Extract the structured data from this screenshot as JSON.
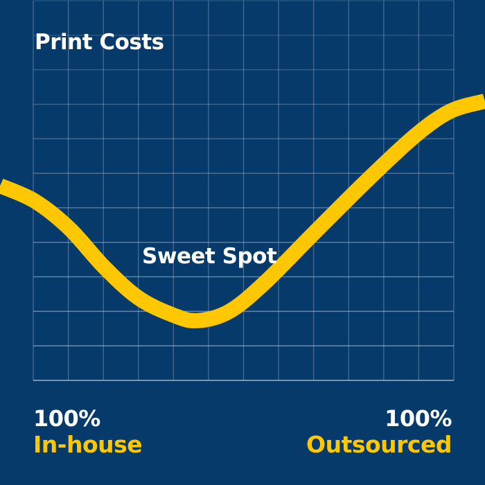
{
  "chart_data": {
    "type": "line",
    "title": "Print Costs",
    "annotation": "Sweet Spot",
    "x_axis": {
      "left_label": {
        "value": "100%",
        "label": "In-house"
      },
      "right_label": {
        "value": "100%",
        "label": "Outsourced"
      },
      "range": [
        0,
        100
      ]
    },
    "y_range": [
      0,
      11
    ],
    "grid": true,
    "series": [
      {
        "x": [
          -7.9,
          0.3,
          8.6,
          16.8,
          25,
          33.3,
          39,
          46.5,
          54.7,
          66.2,
          79.4,
          90.9,
          99.2,
          107.4
        ],
        "y": [
          5.64,
          5.2,
          4.4,
          3.29,
          2.39,
          1.89,
          1.73,
          1.99,
          2.79,
          4.2,
          5.8,
          7.1,
          7.8,
          8.09
        ]
      }
    ]
  },
  "colors": {
    "background": "#063a6a",
    "curve": "#ffc700",
    "text": "#ffffff",
    "label": "#ffc700",
    "grid": "#9fb4cc"
  }
}
